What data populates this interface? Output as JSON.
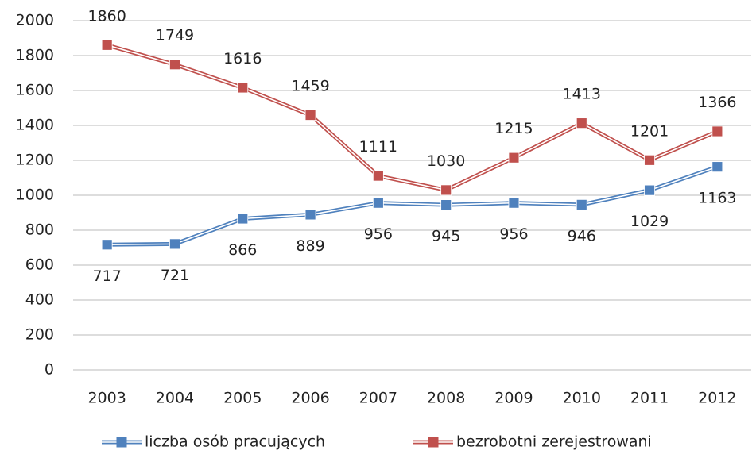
{
  "chart_data": {
    "type": "line",
    "categories": [
      "2003",
      "2004",
      "2005",
      "2006",
      "2007",
      "2008",
      "2009",
      "2010",
      "2011",
      "2012"
    ],
    "series": [
      {
        "name": "liczba osób pracujących",
        "color": "#4f81bd",
        "values": [
          717,
          721,
          866,
          889,
          956,
          945,
          956,
          946,
          1029,
          1163
        ]
      },
      {
        "name": "bezrobotni zerejestrowani",
        "color": "#c0504d",
        "values": [
          1860,
          1749,
          1616,
          1459,
          1111,
          1030,
          1215,
          1413,
          1201,
          1366
        ]
      }
    ],
    "ylim": [
      0,
      2000
    ],
    "yticks": [
      0,
      200,
      400,
      600,
      800,
      1000,
      1200,
      1400,
      1600,
      1800,
      2000
    ],
    "grid": true,
    "legend": "bottom"
  }
}
